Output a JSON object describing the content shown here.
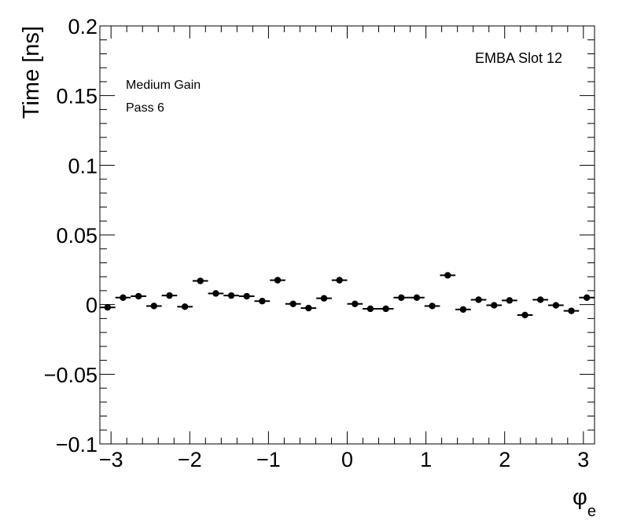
{
  "chart_data": {
    "type": "scatter",
    "title": "",
    "xlabel": "φ",
    "xlabel_sub": "e",
    "ylabel": "Time [ns]",
    "xlim": [
      -3.1416,
      3.1416
    ],
    "ylim": [
      -0.1,
      0.2
    ],
    "x_ticks": [
      -3,
      -2,
      -1,
      0,
      1,
      2,
      3
    ],
    "x_tick_labels": [
      "−3",
      "−2",
      "−1",
      "0",
      "1",
      "2",
      "3"
    ],
    "y_ticks": [
      -0.1,
      -0.05,
      0,
      0.05,
      0.1,
      0.15,
      0.2
    ],
    "y_tick_labels": [
      "−0.1",
      "−0.05",
      "0",
      "0.05",
      "0.1",
      "0.15",
      "0.2"
    ],
    "grid": false,
    "annotations": {
      "top_right": "EMBA Slot 12",
      "top_left_line1": "Medium Gain",
      "top_left_line2": "Pass 6"
    },
    "marker_color": "#000000",
    "series": [
      {
        "bin_half_width": 0.0982,
        "x": [
          -3.0434,
          -2.8471,
          -2.6507,
          -2.4544,
          -2.258,
          -2.0617,
          -1.8653,
          -1.669,
          -1.4726,
          -1.2763,
          -1.0799,
          -0.8836,
          -0.6872,
          -0.4909,
          -0.2945,
          -0.0982,
          0.0982,
          0.2945,
          0.4909,
          0.6872,
          0.8836,
          1.0799,
          1.2763,
          1.4726,
          1.669,
          1.8653,
          2.0617,
          2.258,
          2.4544,
          2.6507,
          2.8471,
          3.0434
        ],
        "y": [
          -0.002,
          0.005,
          0.006,
          -0.001,
          0.0065,
          -0.0015,
          0.017,
          0.008,
          0.0065,
          0.006,
          0.0025,
          0.0175,
          0.0005,
          -0.0025,
          0.0045,
          0.0175,
          0.0005,
          -0.003,
          -0.003,
          0.005,
          0.005,
          -0.001,
          0.021,
          -0.0035,
          0.0035,
          -0.0005,
          0.003,
          -0.0075,
          0.0035,
          -0.0005,
          -0.0045,
          0.005
        ]
      }
    ]
  }
}
